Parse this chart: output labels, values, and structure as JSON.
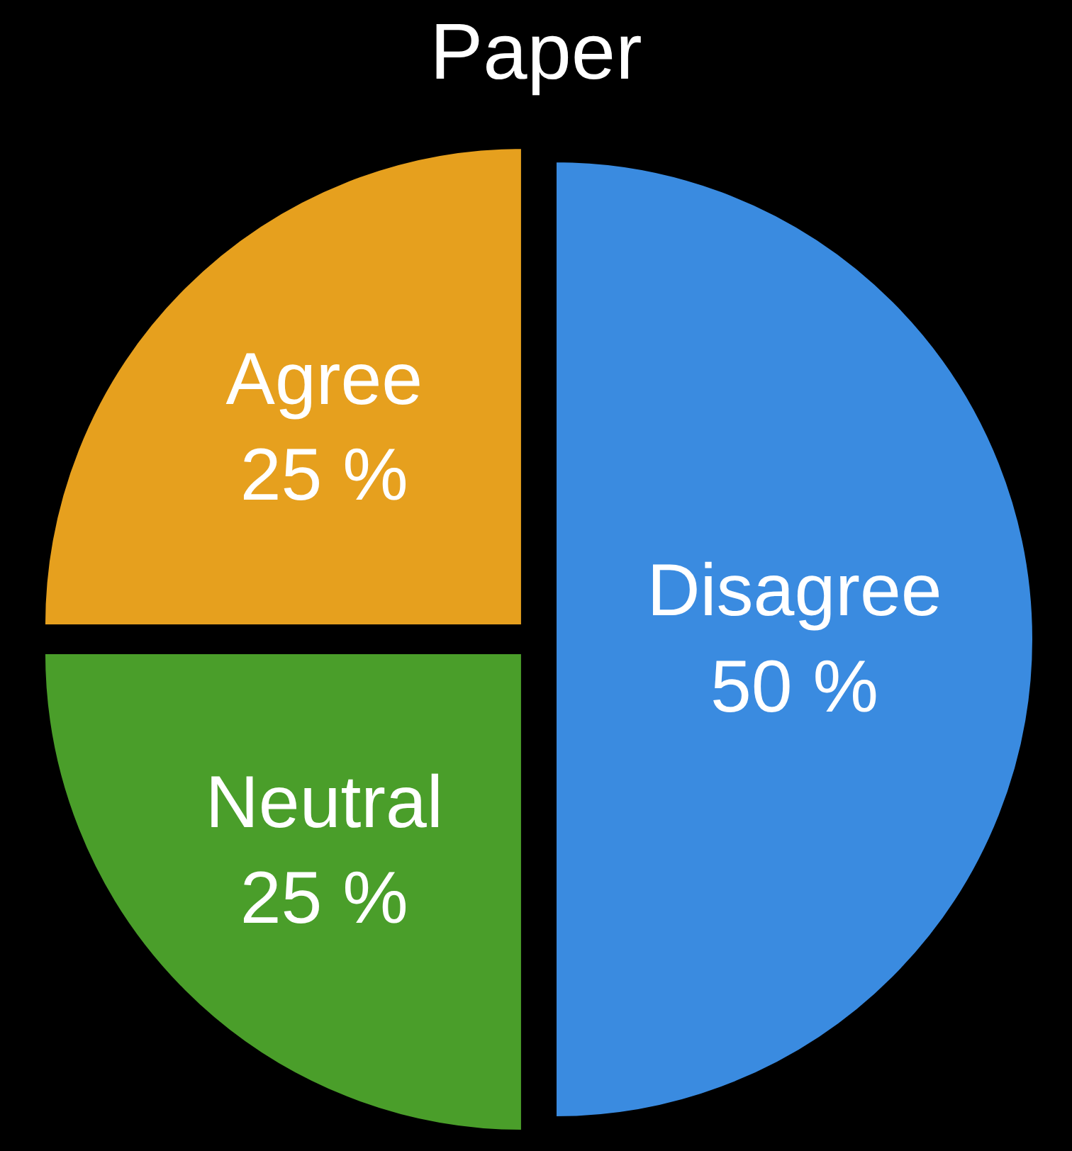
{
  "chart_data": {
    "type": "pie",
    "title": "Paper",
    "categories": [
      "Disagree",
      "Neutral",
      "Agree"
    ],
    "values": [
      50,
      25,
      25
    ],
    "value_labels": [
      "50 %",
      "25 %",
      "25 %"
    ],
    "colors": [
      "#3a8be0",
      "#4a9e2a",
      "#e6a01e"
    ],
    "legend": false
  }
}
